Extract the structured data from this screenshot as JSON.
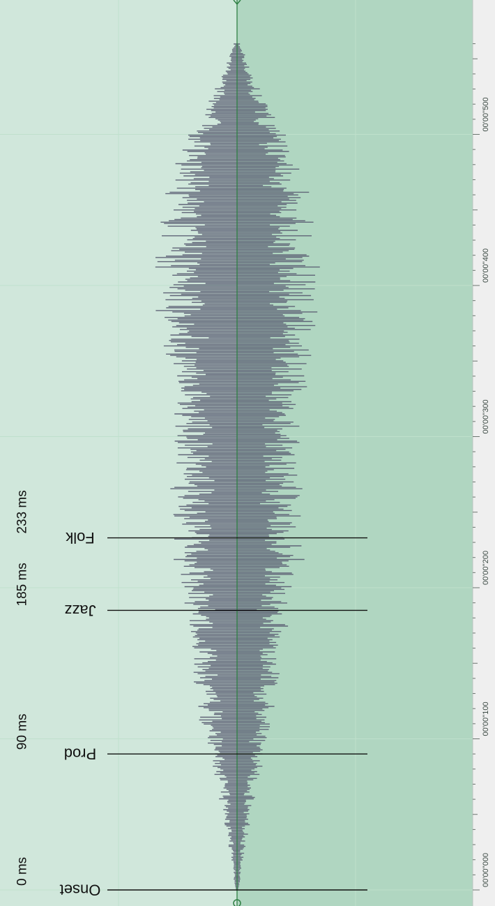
{
  "time_unit": "ms",
  "timeline": {
    "range_ms": [
      0,
      560
    ],
    "ruler_labels": [
      {
        "t": 0,
        "text": "00'00''000"
      },
      {
        "t": 100,
        "text": "00'00''100"
      },
      {
        "t": 200,
        "text": "00'00''200"
      },
      {
        "t": 300,
        "text": "00'00''300"
      },
      {
        "t": 400,
        "text": "00'00''400"
      },
      {
        "t": 500,
        "text": "00'00''500"
      }
    ]
  },
  "markers": [
    {
      "name": "Onset",
      "time_label": "0 ms",
      "t": 0
    },
    {
      "name": "Prod",
      "time_label": "90 ms",
      "t": 90
    },
    {
      "name": "Jazz",
      "time_label": "185 ms",
      "t": 185
    },
    {
      "name": "Folk",
      "time_label": "233 ms",
      "t": 233
    }
  ],
  "colors": {
    "track_light": "#d0e7db",
    "track_dark": "#b0d6c1",
    "grid": "#bfe0cc",
    "waveform": "#5f6477",
    "center_line": "#2f7f44",
    "marker_line": "#111111",
    "ruler_bg": "#efefef"
  },
  "waveform_envelope": [
    {
      "t": 0,
      "amp": 0.02
    },
    {
      "t": 20,
      "amp": 0.06
    },
    {
      "t": 50,
      "amp": 0.14
    },
    {
      "t": 90,
      "amp": 0.27
    },
    {
      "t": 130,
      "amp": 0.42
    },
    {
      "t": 185,
      "amp": 0.52
    },
    {
      "t": 233,
      "amp": 0.67
    },
    {
      "t": 290,
      "amp": 0.6
    },
    {
      "t": 340,
      "amp": 0.7
    },
    {
      "t": 400,
      "amp": 0.81
    },
    {
      "t": 440,
      "amp": 0.75
    },
    {
      "t": 480,
      "amp": 0.62
    },
    {
      "t": 520,
      "amp": 0.3
    },
    {
      "t": 560,
      "amp": 0.03
    }
  ]
}
